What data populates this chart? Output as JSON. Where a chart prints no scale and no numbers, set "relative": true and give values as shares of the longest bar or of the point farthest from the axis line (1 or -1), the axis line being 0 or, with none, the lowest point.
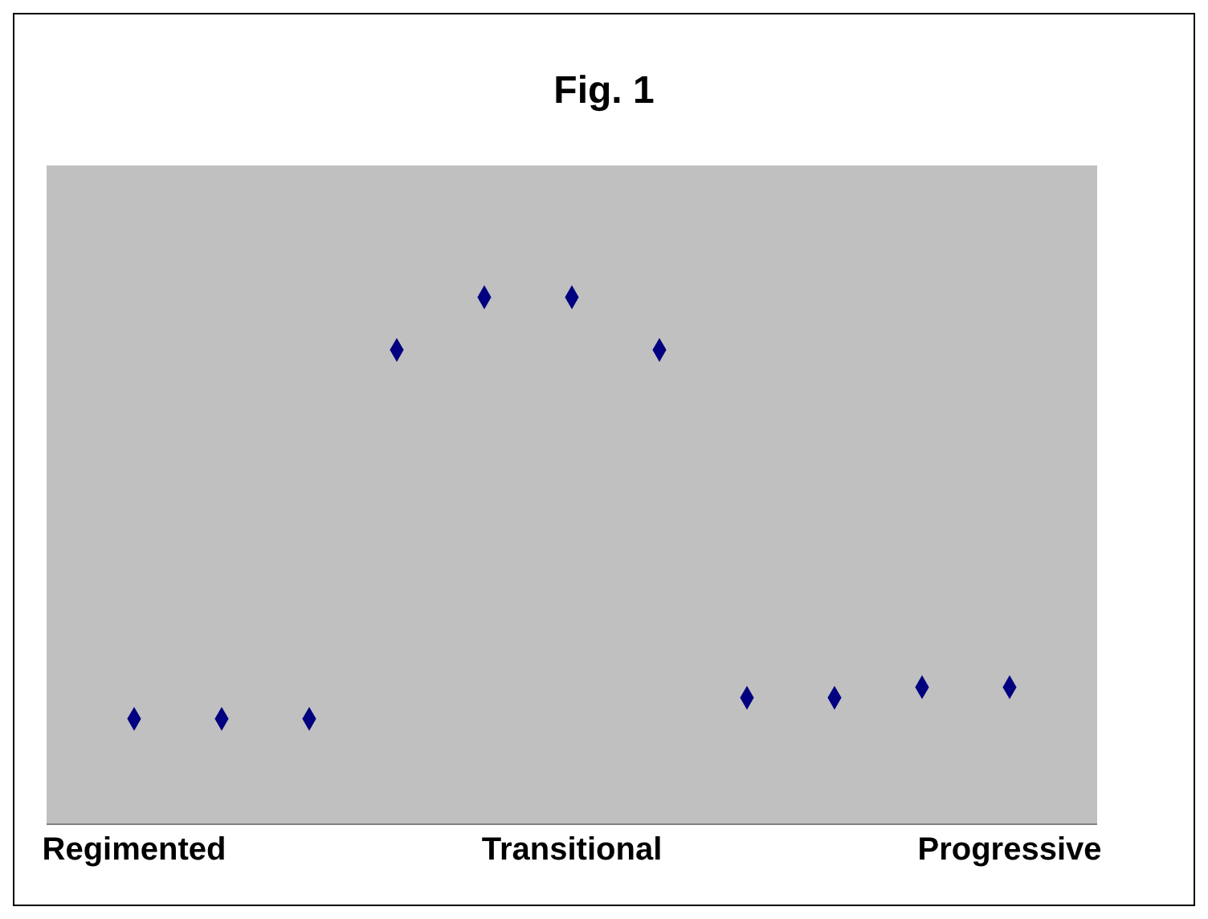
{
  "chart_data": {
    "type": "scatter",
    "title": "Fig. 1",
    "relative": true,
    "marker": "diamond",
    "grid": false,
    "legend": false,
    "categories": [
      "Regimented",
      null,
      null,
      null,
      null,
      "Transitional",
      null,
      null,
      null,
      null,
      "Progressive"
    ],
    "series": [
      {
        "color": "#000080",
        "values": [
          0.2,
          0.2,
          0.2,
          0.9,
          1,
          1,
          0.9,
          0.24,
          0.24,
          0.26,
          0.26
        ]
      }
    ]
  }
}
